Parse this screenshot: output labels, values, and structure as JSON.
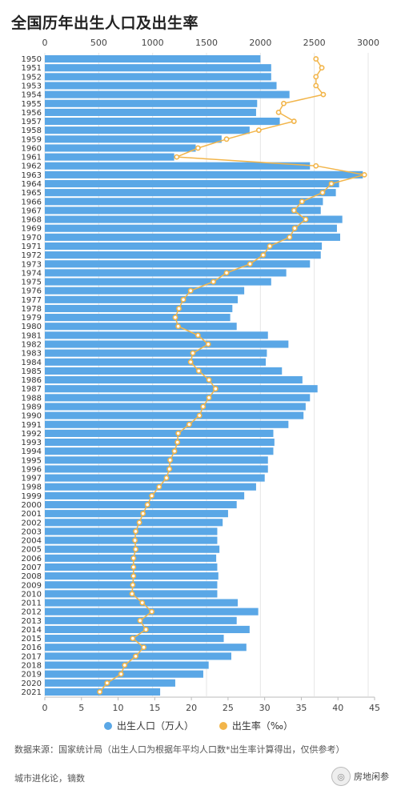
{
  "title": "全国历年出生人口及出生率",
  "legend": {
    "births_label": "出生人口（万人）",
    "rate_label": "出生率（‰）"
  },
  "source": "数据来源：国家统计局（出生人口为根据年平均人口数*出生率计算得出，仅供参考）",
  "credit": "城市进化论，镝数",
  "brand": "房地闲参",
  "colors": {
    "bar": "#5aa7e6",
    "line": "#f2b54a",
    "text": "#333333"
  },
  "chart_data": {
    "type": "bar",
    "orientation": "horizontal",
    "top_axis": {
      "label": "出生人口（万人）",
      "range": [
        0,
        3000
      ],
      "ticks": [
        "0",
        "500",
        "1000",
        "1500",
        "2000",
        "2500",
        "3000"
      ]
    },
    "bottom_axis": {
      "label": "出生率（‰）",
      "range": [
        0,
        45
      ],
      "ticks": [
        "0",
        "5",
        "10",
        "15",
        "20",
        "25",
        "30",
        "35",
        "40",
        "45"
      ]
    },
    "categories": [
      "1950",
      "1951",
      "1952",
      "1953",
      "1954",
      "1955",
      "1956",
      "1957",
      "1958",
      "1959",
      "1960",
      "1961",
      "1962",
      "1963",
      "1964",
      "1965",
      "1966",
      "1967",
      "1968",
      "1969",
      "1970",
      "1971",
      "1972",
      "1973",
      "1974",
      "1975",
      "1976",
      "1977",
      "1978",
      "1979",
      "1980",
      "1981",
      "1982",
      "1983",
      "1984",
      "1985",
      "1986",
      "1987",
      "1988",
      "1989",
      "1990",
      "1991",
      "1992",
      "1993",
      "1994",
      "1995",
      "1996",
      "1997",
      "1998",
      "1999",
      "2000",
      "2001",
      "2002",
      "2003",
      "2004",
      "2005",
      "2006",
      "2007",
      "2008",
      "2009",
      "2010",
      "2011",
      "2012",
      "2013",
      "2014",
      "2015",
      "2016",
      "2017",
      "2018",
      "2019",
      "2020",
      "2021"
    ],
    "series": [
      {
        "name": "出生人口（万人）",
        "type": "bar",
        "values": [
          2000,
          2100,
          2100,
          2150,
          2270,
          1970,
          1960,
          2180,
          1900,
          1640,
          1400,
          1200,
          2460,
          2950,
          2730,
          2700,
          2580,
          2560,
          2760,
          2710,
          2740,
          2570,
          2560,
          2460,
          2240,
          2100,
          1850,
          1790,
          1740,
          1720,
          1780,
          2070,
          2260,
          2060,
          2050,
          2200,
          2390,
          2530,
          2460,
          2420,
          2400,
          2260,
          2120,
          2130,
          2120,
          2070,
          2070,
          2040,
          1960,
          1850,
          1780,
          1700,
          1650,
          1600,
          1600,
          1620,
          1590,
          1600,
          1610,
          1600,
          1600,
          1790,
          1980,
          1780,
          1900,
          1660,
          1870,
          1730,
          1520,
          1470,
          1210,
          1070
        ]
      },
      {
        "name": "出生率（‰）",
        "type": "line",
        "values": [
          37.0,
          37.8,
          37.0,
          37.0,
          38.0,
          32.6,
          31.9,
          34.0,
          29.2,
          24.8,
          20.9,
          18.0,
          37.0,
          43.6,
          39.1,
          37.9,
          35.1,
          34.0,
          35.6,
          34.1,
          33.4,
          30.7,
          29.8,
          28.0,
          24.8,
          23.0,
          19.9,
          18.9,
          18.3,
          17.8,
          18.2,
          20.9,
          22.3,
          20.2,
          19.9,
          21.0,
          22.4,
          23.3,
          22.4,
          21.6,
          21.1,
          19.7,
          18.2,
          18.1,
          17.7,
          17.1,
          17.0,
          16.6,
          15.6,
          14.6,
          14.0,
          13.4,
          12.9,
          12.4,
          12.3,
          12.4,
          12.1,
          12.1,
          12.1,
          12.0,
          11.9,
          13.3,
          14.6,
          13.0,
          13.8,
          12.0,
          13.5,
          12.4,
          10.9,
          10.4,
          8.5,
          7.5
        ]
      }
    ]
  }
}
